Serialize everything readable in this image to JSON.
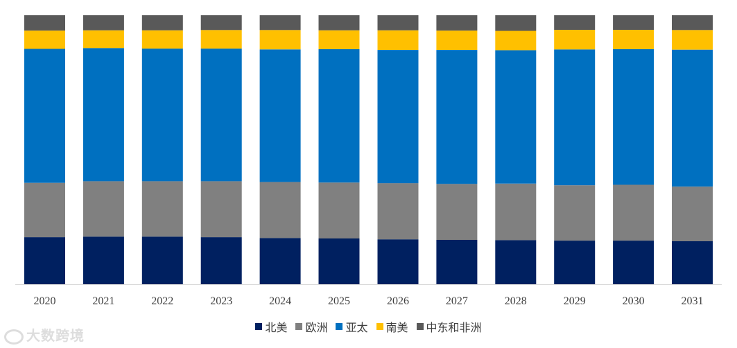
{
  "chart_data": {
    "type": "bar",
    "stacked": true,
    "normalized": true,
    "categories": [
      "2020",
      "2021",
      "2022",
      "2023",
      "2024",
      "2025",
      "2026",
      "2027",
      "2028",
      "2029",
      "2030",
      "2031"
    ],
    "series": [
      {
        "name": "北美",
        "color": "#002060",
        "values": [
          17.5,
          17.7,
          17.7,
          17.5,
          17.2,
          17.0,
          16.7,
          16.5,
          16.4,
          16.2,
          16.2,
          16.0
        ]
      },
      {
        "name": "欧洲",
        "color": "#808080",
        "values": [
          20.2,
          20.6,
          20.6,
          20.8,
          20.8,
          20.8,
          20.9,
          20.8,
          21.0,
          20.6,
          20.8,
          20.3
        ]
      },
      {
        "name": "亚太",
        "color": "#0070C0",
        "values": [
          49.8,
          49.5,
          49.3,
          49.3,
          49.3,
          49.6,
          49.5,
          49.8,
          49.6,
          50.5,
          50.4,
          50.9
        ]
      },
      {
        "name": "南美",
        "color": "#FFC000",
        "values": [
          6.8,
          6.6,
          6.8,
          6.9,
          7.2,
          7.0,
          7.3,
          7.2,
          7.2,
          7.3,
          7.2,
          7.3
        ]
      },
      {
        "name": "中东和非洲",
        "color": "#595959",
        "values": [
          5.7,
          5.6,
          5.6,
          5.5,
          5.5,
          5.6,
          5.6,
          5.7,
          5.8,
          5.4,
          5.4,
          5.5
        ]
      }
    ],
    "title": "",
    "xlabel": "",
    "ylabel": "",
    "ylim": [
      0,
      100
    ],
    "grid": false,
    "legend_position": "bottom"
  },
  "watermark": "大数跨境"
}
